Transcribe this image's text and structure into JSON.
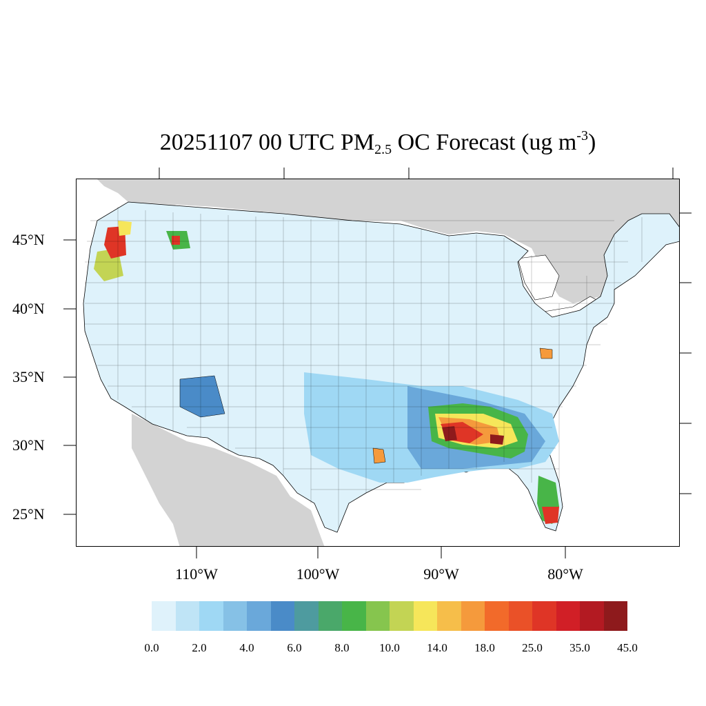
{
  "title": {
    "prefix": "20251107 00 UTC PM",
    "subscript": "2.5",
    "middle": " OC Forecast (ug m",
    "superscript": "-3",
    "suffix": ")"
  },
  "lat_labels": [
    "45°N",
    "40°N",
    "35°N",
    "30°N",
    "25°N"
  ],
  "lon_labels": [
    "110°W",
    "100°W",
    "90°W",
    "80°W"
  ],
  "colorbar": {
    "colors": [
      "#dff2fb",
      "#bfe4f6",
      "#9fd8f4",
      "#86c1e6",
      "#6aa8da",
      "#4a8bc8",
      "#4e9b9f",
      "#4aa86a",
      "#48b548",
      "#86c54e",
      "#c3d454",
      "#f6e65a",
      "#f6be4a",
      "#f59a3c",
      "#f26a2a",
      "#ea5128",
      "#df3526",
      "#d11f26",
      "#b31a22",
      "#8e1a1c"
    ],
    "labels": [
      "0.0",
      "2.0",
      "4.0",
      "6.0",
      "8.0",
      "10.0",
      "14.0",
      "18.0",
      "25.0",
      "35.0",
      "45.0"
    ]
  },
  "map_colors": {
    "land_background": "#d3d3d3",
    "water": "#ffffff",
    "low": "#def2fb"
  }
}
